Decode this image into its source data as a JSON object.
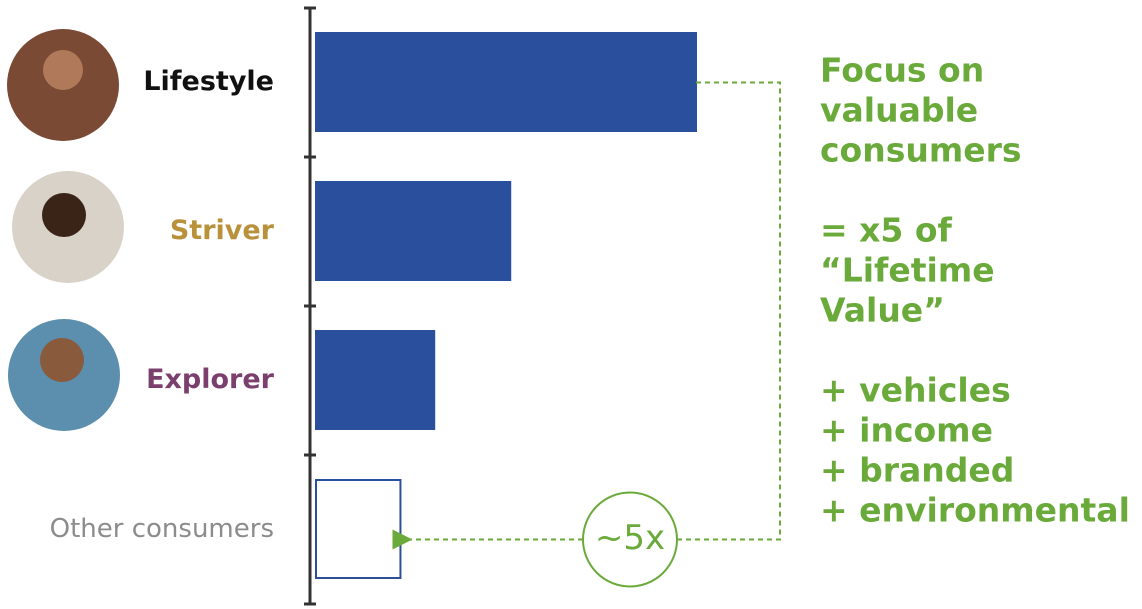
{
  "chart_data": {
    "type": "bar",
    "orientation": "horizontal",
    "categories": [
      "Lifestyle",
      "Striver",
      "Explorer",
      "Other consumers"
    ],
    "values": [
      4.5,
      2.3,
      1.4,
      1.0
    ],
    "colors": [
      "#2a4f9c",
      "#2a4f9c",
      "#2a4f9c",
      "#ffffff"
    ],
    "edge_color": "#2a4f9c",
    "label_colors": [
      "#111111",
      "#b8913a",
      "#7b3f6e",
      "#8c8c8c"
    ],
    "annotation_color": "#6aaa3a",
    "ratio_label": "~5x",
    "annotation": [
      [
        "Focus on",
        "valuable",
        "consumers"
      ],
      [
        "= x5 of",
        "“Lifetime",
        "Value”"
      ],
      [
        "+ vehicles",
        "+ income",
        "+ branded",
        "+ environmental"
      ]
    ]
  }
}
